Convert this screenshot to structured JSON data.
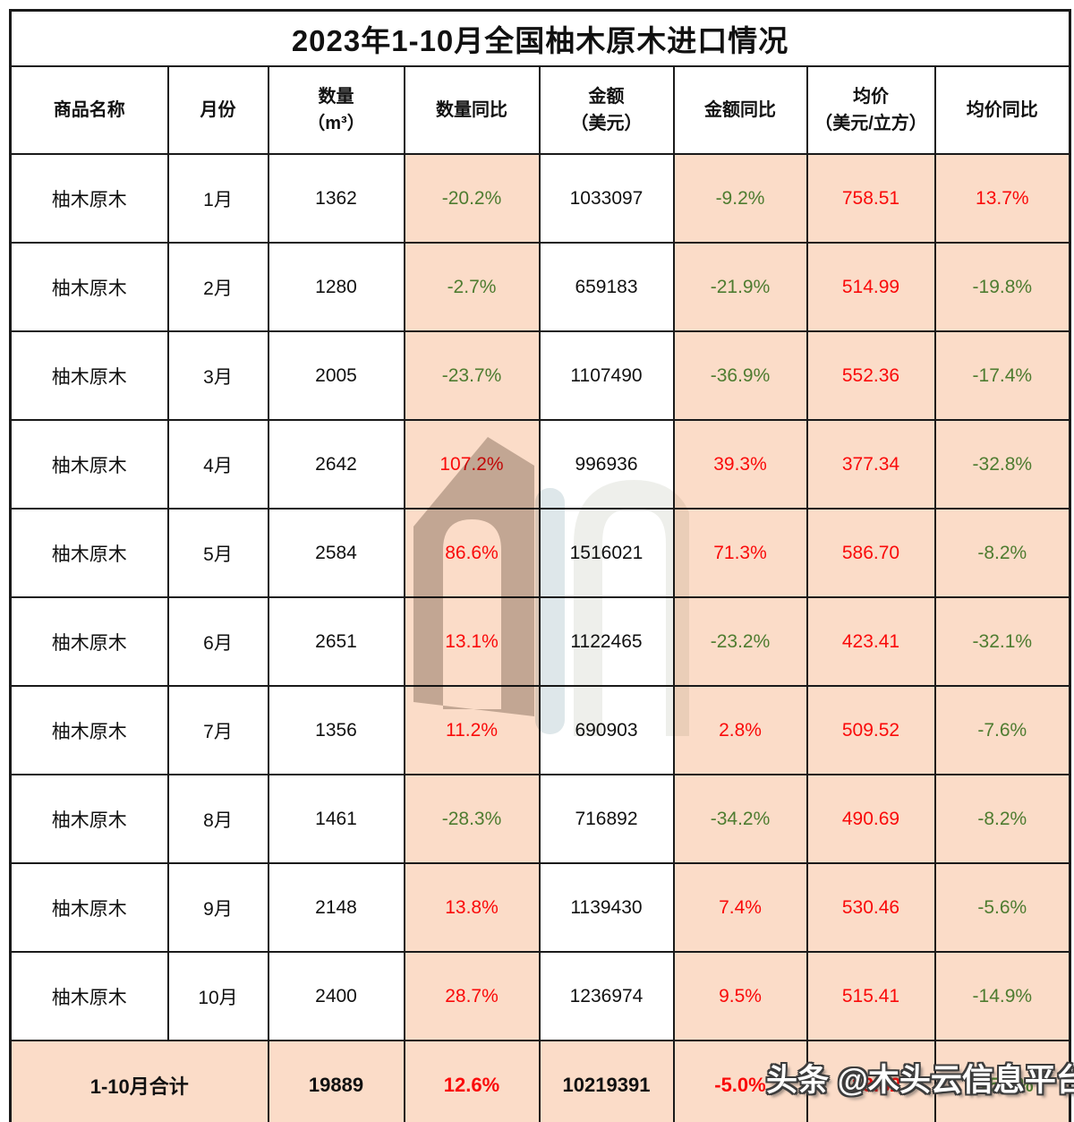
{
  "title": "2023年1-10月全国柚木原木进口情况",
  "colors": {
    "highlight_bg": "#FBDCC8",
    "positive_red": "#FA0A0A",
    "negative_green": "#4E7C30",
    "text_black": "#111111"
  },
  "table": {
    "columns": [
      {
        "label": "商品名称"
      },
      {
        "label": "月份"
      },
      {
        "label": "数量\n（m³）"
      },
      {
        "label": "数量同比"
      },
      {
        "label": "金额\n（美元）"
      },
      {
        "label": "金额同比"
      },
      {
        "label": "均价\n（美元/立方）"
      },
      {
        "label": "均价同比"
      }
    ],
    "rows": [
      {
        "product": "柚木原木",
        "month": "1月",
        "qty": "1362",
        "qty_yoy": {
          "text": "-20.2%",
          "color": "green"
        },
        "amount": "1033097",
        "amount_yoy": {
          "text": "-9.2%",
          "color": "green"
        },
        "avg_price": {
          "text": "758.51",
          "color": "red"
        },
        "avg_yoy": {
          "text": "13.7%",
          "color": "red"
        }
      },
      {
        "product": "柚木原木",
        "month": "2月",
        "qty": "1280",
        "qty_yoy": {
          "text": "-2.7%",
          "color": "green"
        },
        "amount": "659183",
        "amount_yoy": {
          "text": "-21.9%",
          "color": "green"
        },
        "avg_price": {
          "text": "514.99",
          "color": "red"
        },
        "avg_yoy": {
          "text": "-19.8%",
          "color": "green"
        }
      },
      {
        "product": "柚木原木",
        "month": "3月",
        "qty": "2005",
        "qty_yoy": {
          "text": "-23.7%",
          "color": "green"
        },
        "amount": "1107490",
        "amount_yoy": {
          "text": "-36.9%",
          "color": "green"
        },
        "avg_price": {
          "text": "552.36",
          "color": "red"
        },
        "avg_yoy": {
          "text": "-17.4%",
          "color": "green"
        }
      },
      {
        "product": "柚木原木",
        "month": "4月",
        "qty": "2642",
        "qty_yoy": {
          "text": "107.2%",
          "color": "red"
        },
        "amount": "996936",
        "amount_yoy": {
          "text": "39.3%",
          "color": "red"
        },
        "avg_price": {
          "text": "377.34",
          "color": "red"
        },
        "avg_yoy": {
          "text": "-32.8%",
          "color": "green"
        }
      },
      {
        "product": "柚木原木",
        "month": "5月",
        "qty": "2584",
        "qty_yoy": {
          "text": "86.6%",
          "color": "red"
        },
        "amount": "1516021",
        "amount_yoy": {
          "text": "71.3%",
          "color": "red"
        },
        "avg_price": {
          "text": "586.70",
          "color": "red"
        },
        "avg_yoy": {
          "text": "-8.2%",
          "color": "green"
        }
      },
      {
        "product": "柚木原木",
        "month": "6月",
        "qty": "2651",
        "qty_yoy": {
          "text": "13.1%",
          "color": "red"
        },
        "amount": "1122465",
        "amount_yoy": {
          "text": "-23.2%",
          "color": "green"
        },
        "avg_price": {
          "text": "423.41",
          "color": "red"
        },
        "avg_yoy": {
          "text": "-32.1%",
          "color": "green"
        }
      },
      {
        "product": "柚木原木",
        "month": "7月",
        "qty": "1356",
        "qty_yoy": {
          "text": "11.2%",
          "color": "red"
        },
        "amount": "690903",
        "amount_yoy": {
          "text": "2.8%",
          "color": "red"
        },
        "avg_price": {
          "text": "509.52",
          "color": "red"
        },
        "avg_yoy": {
          "text": "-7.6%",
          "color": "green"
        }
      },
      {
        "product": "柚木原木",
        "month": "8月",
        "qty": "1461",
        "qty_yoy": {
          "text": "-28.3%",
          "color": "green"
        },
        "amount": "716892",
        "amount_yoy": {
          "text": "-34.2%",
          "color": "green"
        },
        "avg_price": {
          "text": "490.69",
          "color": "red"
        },
        "avg_yoy": {
          "text": "-8.2%",
          "color": "green"
        }
      },
      {
        "product": "柚木原木",
        "month": "9月",
        "qty": "2148",
        "qty_yoy": {
          "text": "13.8%",
          "color": "red"
        },
        "amount": "1139430",
        "amount_yoy": {
          "text": "7.4%",
          "color": "red"
        },
        "avg_price": {
          "text": "530.46",
          "color": "red"
        },
        "avg_yoy": {
          "text": "-5.6%",
          "color": "green"
        }
      },
      {
        "product": "柚木原木",
        "month": "10月",
        "qty": "2400",
        "qty_yoy": {
          "text": "28.7%",
          "color": "red"
        },
        "amount": "1236974",
        "amount_yoy": {
          "text": "9.5%",
          "color": "red"
        },
        "avg_price": {
          "text": "515.41",
          "color": "red"
        },
        "avg_yoy": {
          "text": "-14.9%",
          "color": "green"
        }
      }
    ],
    "total_row": {
      "label": "1-10月合计",
      "qty": "19889",
      "qty_yoy": {
        "text": "12.6%",
        "color": "red"
      },
      "amount": "10219391",
      "amount_yoy": {
        "text": "-5.0%",
        "color": "red"
      },
      "avg_price": {
        "text": "513.82",
        "color": "red"
      },
      "avg_yoy": {
        "text": "-15.6%",
        "color": "green"
      }
    }
  },
  "watermark": {
    "brand_text": "头条 @木头云信息平台"
  },
  "chart_data": {
    "type": "table",
    "title": "2023年1-10月全国柚木原木进口情况",
    "columns": [
      "商品名称",
      "月份",
      "数量（m³）",
      "数量同比",
      "金额（美元）",
      "金额同比",
      "均价（美元/立方）",
      "均价同比"
    ],
    "rows": [
      [
        "柚木原木",
        "1月",
        1362,
        "-20.2%",
        1033097,
        "-9.2%",
        758.51,
        "13.7%"
      ],
      [
        "柚木原木",
        "2月",
        1280,
        "-2.7%",
        659183,
        "-21.9%",
        514.99,
        "-19.8%"
      ],
      [
        "柚木原木",
        "3月",
        2005,
        "-23.7%",
        1107490,
        "-36.9%",
        552.36,
        "-17.4%"
      ],
      [
        "柚木原木",
        "4月",
        2642,
        "107.2%",
        996936,
        "39.3%",
        377.34,
        "-32.8%"
      ],
      [
        "柚木原木",
        "5月",
        2584,
        "86.6%",
        1516021,
        "71.3%",
        586.7,
        "-8.2%"
      ],
      [
        "柚木原木",
        "6月",
        2651,
        "13.1%",
        1122465,
        "-23.2%",
        423.41,
        "-32.1%"
      ],
      [
        "柚木原木",
        "7月",
        1356,
        "11.2%",
        690903,
        "2.8%",
        509.52,
        "-7.6%"
      ],
      [
        "柚木原木",
        "8月",
        1461,
        "-28.3%",
        716892,
        "-34.2%",
        490.69,
        "-8.2%"
      ],
      [
        "柚木原木",
        "9月",
        2148,
        "13.8%",
        1139430,
        "7.4%",
        530.46,
        "-5.6%"
      ],
      [
        "柚木原木",
        "10月",
        2400,
        "28.7%",
        1236974,
        "9.5%",
        515.41,
        "-14.9%"
      ],
      [
        "1-10月合计",
        "",
        19889,
        "12.6%",
        10219391,
        "-5.0%",
        513.82,
        "-15.6%"
      ]
    ]
  }
}
